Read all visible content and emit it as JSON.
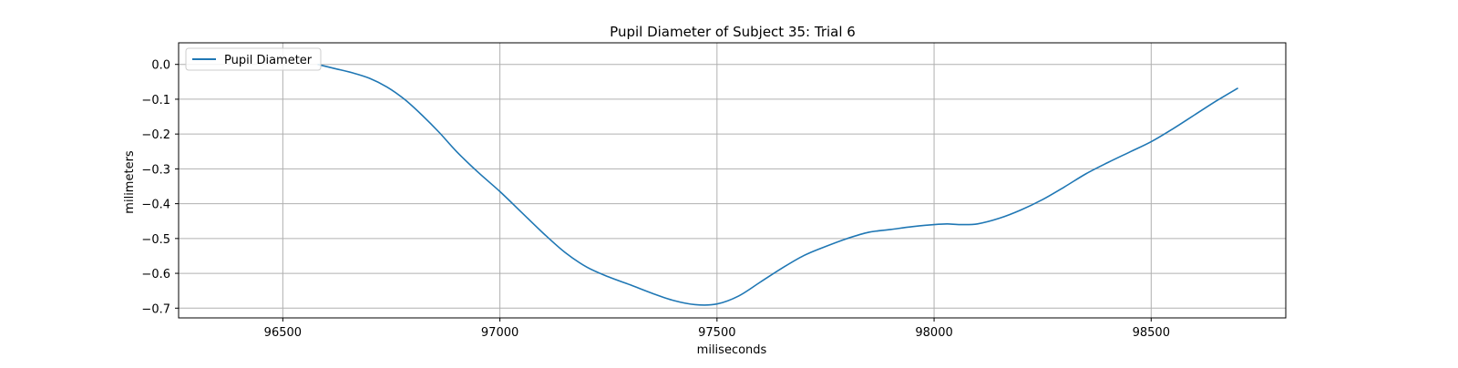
{
  "chart_data": {
    "type": "line",
    "title": "Pupil Diameter of Subject 35: Trial 6",
    "xlabel": "miliseconds",
    "ylabel": "milimeters",
    "xlim": [
      96260,
      98810
    ],
    "ylim": [
      -0.728,
      0.062
    ],
    "x_ticks": [
      96500,
      97000,
      97500,
      98000,
      98500
    ],
    "x_tick_labels": [
      "96500",
      "97000",
      "97500",
      "98000",
      "98500"
    ],
    "y_ticks": [
      0.0,
      -0.1,
      -0.2,
      -0.3,
      -0.4,
      -0.5,
      -0.6,
      -0.7
    ],
    "y_tick_labels": [
      "0.0",
      "−0.1",
      "−0.2",
      "−0.3",
      "−0.4",
      "−0.5",
      "−0.6",
      "−0.7"
    ],
    "grid": true,
    "legend": {
      "position": "upper-left",
      "entries": [
        "Pupil Diameter"
      ]
    },
    "series": [
      {
        "name": "Pupil Diameter",
        "color": "#1f77b4",
        "x": [
          96580,
          96620,
          96660,
          96700,
          96740,
          96780,
          96820,
          96860,
          96900,
          96950,
          97000,
          97050,
          97100,
          97150,
          97200,
          97250,
          97300,
          97350,
          97400,
          97450,
          97500,
          97550,
          97600,
          97650,
          97700,
          97750,
          97800,
          97850,
          97900,
          97950,
          98000,
          98030,
          98060,
          98100,
          98150,
          98200,
          98250,
          98300,
          98350,
          98400,
          98450,
          98500,
          98550,
          98600,
          98650,
          98700
        ],
        "values": [
          0.0,
          -0.012,
          -0.024,
          -0.04,
          -0.065,
          -0.1,
          -0.145,
          -0.195,
          -0.25,
          -0.31,
          -0.365,
          -0.425,
          -0.485,
          -0.54,
          -0.582,
          -0.61,
          -0.633,
          -0.657,
          -0.678,
          -0.69,
          -0.688,
          -0.665,
          -0.625,
          -0.585,
          -0.549,
          -0.523,
          -0.5,
          -0.482,
          -0.474,
          -0.466,
          -0.46,
          -0.458,
          -0.46,
          -0.458,
          -0.442,
          -0.418,
          -0.388,
          -0.352,
          -0.314,
          -0.282,
          -0.252,
          -0.222,
          -0.185,
          -0.145,
          -0.105,
          -0.068
        ]
      }
    ]
  }
}
